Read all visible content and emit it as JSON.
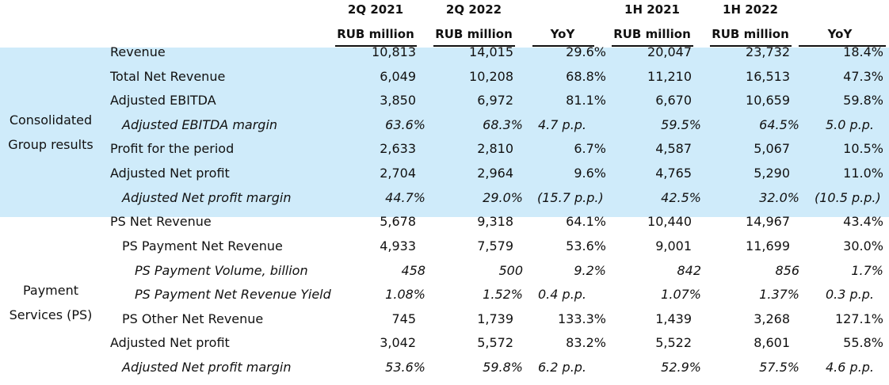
{
  "header": {
    "periods": [
      "2Q 2021",
      "2Q 2022",
      "1H 2021",
      "1H 2022"
    ],
    "units": [
      "RUB million",
      "RUB million",
      "YoY",
      "RUB million",
      "RUB million",
      "YoY"
    ]
  },
  "sections": [
    {
      "label_line1": "Consolidated",
      "label_line2": "Group results"
    },
    {
      "label_line1": "Payment",
      "label_line2": "Services (PS)"
    }
  ],
  "rows": [
    {
      "label": "Revenue",
      "values": [
        "10,813",
        "14,015",
        "29.6%",
        "20,047",
        "23,732",
        "18.4%"
      ]
    },
    {
      "label": "Total Net Revenue",
      "values": [
        "6,049",
        "10,208",
        "68.8%",
        "11,210",
        "16,513",
        "47.3%"
      ]
    },
    {
      "label": "Adjusted EBITDA",
      "values": [
        "3,850",
        "6,972",
        "81.1%",
        "6,670",
        "10,659",
        "59.8%"
      ]
    },
    {
      "label": "Adjusted EBITDA margin",
      "values": [
        "63.6%",
        "68.3%",
        "4.7 p.p.",
        "59.5%",
        "64.5%",
        "5.0 p.p."
      ]
    },
    {
      "label": "Profit for the period",
      "values": [
        "2,633",
        "2,810",
        "6.7%",
        "4,587",
        "5,067",
        "10.5%"
      ]
    },
    {
      "label": "Adjusted Net profit",
      "values": [
        "2,704",
        "2,964",
        "9.6%",
        "4,765",
        "5,290",
        "11.0%"
      ]
    },
    {
      "label": "Adjusted Net profit margin",
      "values": [
        "44.7%",
        "29.0%",
        "(15.7 p.p.)",
        "42.5%",
        "32.0%",
        "(10.5 p.p.)"
      ]
    },
    {
      "label": "PS Net Revenue",
      "values": [
        "5,678",
        "9,318",
        "64.1%",
        "10,440",
        "14,967",
        "43.4%"
      ]
    },
    {
      "label": "PS Payment Net Revenue",
      "values": [
        "4,933",
        "7,579",
        "53.6%",
        "9,001",
        "11,699",
        "30.0%"
      ]
    },
    {
      "label": "PS Payment Volume, billion",
      "values": [
        "458",
        "500",
        "9.2%",
        "842",
        "856",
        "1.7%"
      ]
    },
    {
      "label": "PS Payment Net Revenue Yield",
      "values": [
        "1.08%",
        "1.52%",
        "0.4 p.p.",
        "1.07%",
        "1.37%",
        "0.3 p.p."
      ]
    },
    {
      "label": "PS Other Net Revenue",
      "values": [
        "745",
        "1,739",
        "133.3%",
        "1,439",
        "3,268",
        "127.1%"
      ]
    },
    {
      "label": "Adjusted Net profit",
      "values": [
        "3,042",
        "5,572",
        "83.2%",
        "5,522",
        "8,601",
        "55.8%"
      ]
    },
    {
      "label": "Adjusted Net profit margin",
      "values": [
        "53.6%",
        "59.8%",
        "6.2 p.p.",
        "52.9%",
        "57.5%",
        "4.6 p.p."
      ]
    }
  ]
}
